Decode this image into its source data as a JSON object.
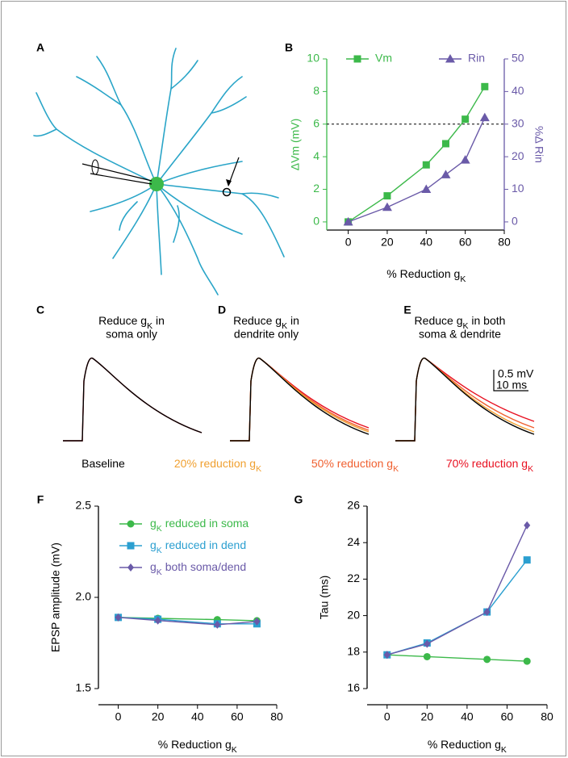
{
  "panels": [
    "A",
    "B",
    "C",
    "D",
    "E",
    "F",
    "G"
  ],
  "traces": {
    "titles": [
      {
        "line1": {
          "text": "Reduce g",
          "sub": "K",
          "rest": " in"
        },
        "line2": "soma only"
      },
      {
        "line1": {
          "text": "Reduce g",
          "sub": "K",
          "rest": " in"
        },
        "line2": "dendrite only"
      },
      {
        "line1": {
          "text": "Reduce g",
          "sub": "K",
          "rest": " in both"
        },
        "line2": "soma & dendrite"
      }
    ],
    "scale_bar": [
      "0.5 mV",
      "10 ms"
    ],
    "legend": [
      {
        "name": {
          "text": "Baseline"
        },
        "color": "#000000"
      },
      {
        "name": {
          "text": "20% reduction g",
          "sub": "K"
        },
        "color": "#f0a030"
      },
      {
        "name": {
          "text": "50% reduction g",
          "sub": "K"
        },
        "color": "#f06030"
      },
      {
        "name": {
          "text": "70% reduction g",
          "sub": "K"
        },
        "color": "#e81020"
      }
    ]
  },
  "chart_data": [
    {
      "type": "line",
      "xlim": [
        -11,
        80
      ],
      "xticks": [
        0,
        20,
        40,
        60,
        80
      ],
      "ylim": [
        -0.5,
        10
      ],
      "yticks": [
        0,
        2,
        4,
        6,
        8,
        10
      ],
      "ycolor": "#3cb94a",
      "y2lim": [
        -2.5,
        50
      ],
      "y2ticks": [
        0,
        10,
        20,
        30,
        40,
        50
      ],
      "y2color": "#6a5aa8",
      "ylabel": "ΔVm (mV)",
      "y2label": "%Δ Rin",
      "xlabel": {
        "text": "% Reduction g",
        "sub": "K"
      },
      "hline": 6,
      "legend": "top",
      "series": [
        {
          "name": "Vm",
          "color": "#3cb94a",
          "marker": "square",
          "x": [
            0,
            20,
            40,
            50,
            60,
            70
          ],
          "values": [
            0,
            1.6,
            3.5,
            4.8,
            6.3,
            8.3
          ]
        },
        {
          "name": "Rin",
          "color": "#6a5aa8",
          "marker": "triangle",
          "axis": "y2",
          "x": [
            0,
            20,
            40,
            50,
            60,
            70
          ],
          "values": [
            0,
            4.5,
            10,
            14.5,
            19,
            32
          ]
        }
      ]
    },
    {
      "type": "line",
      "xlim": [
        -10,
        80
      ],
      "xticks": [
        0,
        20,
        40,
        60,
        80
      ],
      "ylim": [
        1.5,
        2.5
      ],
      "yticks": [
        {
          "value": 1.5,
          "label": "1.5"
        },
        {
          "value": 2,
          "label": "2.0"
        },
        {
          "value": 2.5,
          "label": "2.5"
        }
      ],
      "ylabel": "EPSP amplitude (mV)",
      "xlabel": {
        "text": "% Reduction g",
        "sub": "K"
      },
      "legend": "upper left",
      "series": [
        {
          "name": {
            "text": "g",
            "sub": "K",
            "rest": " reduced in soma"
          },
          "color": "#3cb94a",
          "marker": "circle",
          "x": [
            0,
            20,
            50,
            70
          ],
          "values": [
            1.89,
            1.885,
            1.878,
            1.872
          ]
        },
        {
          "name": {
            "text": "g",
            "sub": "K",
            "rest": " reduced in dend"
          },
          "color": "#2b9fd0",
          "marker": "square",
          "x": [
            0,
            20,
            50,
            70
          ],
          "values": [
            1.89,
            1.88,
            1.855,
            1.855
          ]
        },
        {
          "name": {
            "text": "g",
            "sub": "K",
            "rest": " both soma/dend"
          },
          "color": "#6a5aa8",
          "marker": "diamond",
          "x": [
            0,
            20,
            50,
            70
          ],
          "values": [
            1.89,
            1.873,
            1.85,
            1.868
          ]
        }
      ]
    },
    {
      "type": "line",
      "xlim": [
        -10,
        80
      ],
      "xticks": [
        0,
        20,
        40,
        60,
        80
      ],
      "ylim": [
        16,
        26
      ],
      "yticks": [
        16,
        18,
        20,
        22,
        24,
        26
      ],
      "ylabel": "Tau (ms)",
      "xlabel": {
        "text": "% Reduction g",
        "sub": "K"
      },
      "series": [
        {
          "color": "#3cb94a",
          "marker": "circle",
          "x": [
            0,
            20,
            50,
            70
          ],
          "values": [
            17.85,
            17.75,
            17.6,
            17.5
          ]
        },
        {
          "color": "#2b9fd0",
          "marker": "square",
          "x": [
            0,
            20,
            50,
            70
          ],
          "values": [
            17.85,
            18.5,
            20.2,
            23.05
          ]
        },
        {
          "color": "#6a5aa8",
          "marker": "diamond",
          "x": [
            0,
            20,
            50,
            70
          ],
          "values": [
            17.85,
            18.45,
            20.2,
            24.95
          ]
        }
      ]
    }
  ]
}
